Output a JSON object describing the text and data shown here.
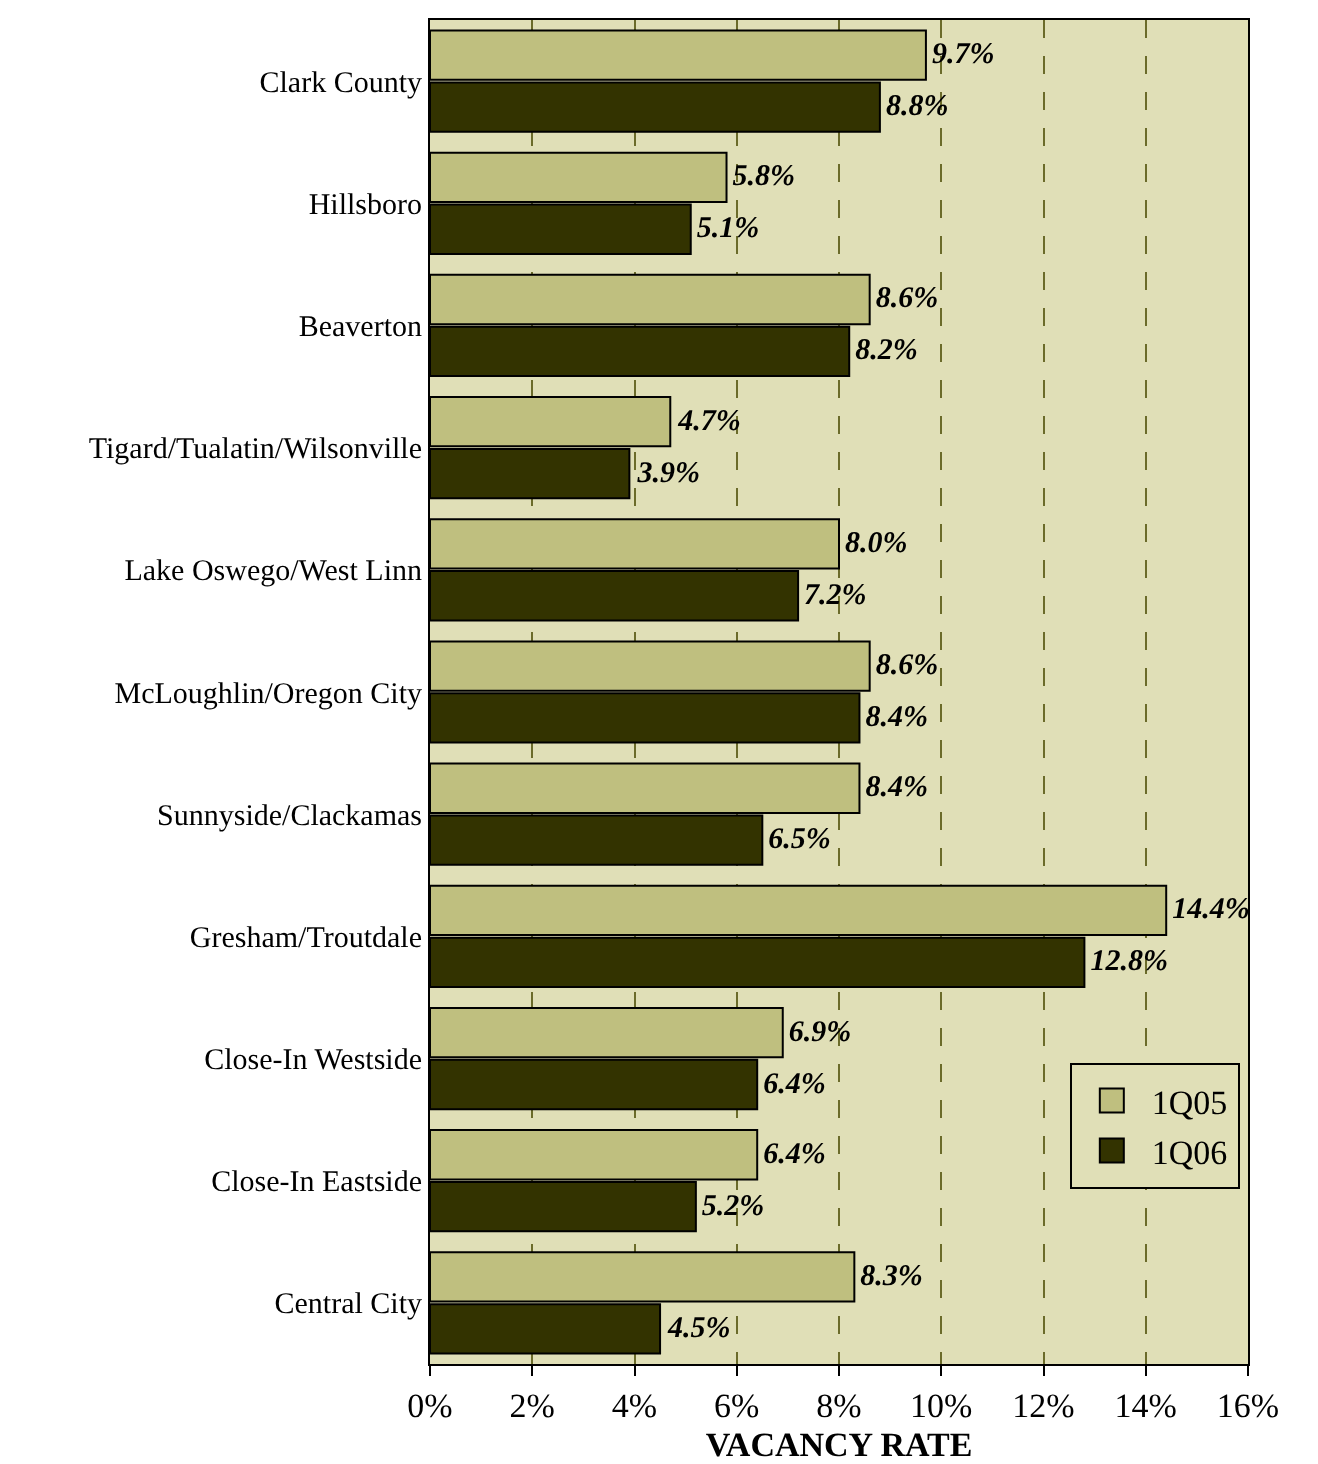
{
  "chart_data": {
    "type": "bar",
    "orientation": "horizontal",
    "xlabel": "VACANCY RATE",
    "categories": [
      "Clark County",
      "Hillsboro",
      "Beaverton",
      "Tigard/Tualatin/Wilsonville",
      "Lake Oswego/West Linn",
      "McLoughlin/Oregon City",
      "Sunnyside/Clackamas",
      "Gresham/Troutdale",
      "Close-In Westside",
      "Close-In Eastside",
      "Central City"
    ],
    "series": [
      {
        "name": "1Q05",
        "color": "#bfbf7f",
        "values": [
          9.7,
          5.8,
          8.6,
          4.7,
          8.0,
          8.6,
          8.4,
          14.4,
          6.9,
          6.4,
          8.3
        ],
        "value_labels": [
          "9.7%",
          "5.8%",
          "8.6%",
          "4.7%",
          "8.0%",
          "8.6%",
          "8.4%",
          "14.4%",
          "6.9%",
          "6.4%",
          "8.3%"
        ]
      },
      {
        "name": "1Q06",
        "color": "#333300",
        "values": [
          8.8,
          5.1,
          8.2,
          3.9,
          7.2,
          8.4,
          6.5,
          12.8,
          6.4,
          5.2,
          4.5
        ],
        "value_labels": [
          "8.8%",
          "5.1%",
          "8.2%",
          "3.9%",
          "7.2%",
          "8.4%",
          "6.5%",
          "12.8%",
          "6.4%",
          "5.2%",
          "4.5%"
        ]
      }
    ],
    "xlim": [
      0,
      16
    ],
    "xticks": [
      {
        "value": 0,
        "label": "0%"
      },
      {
        "value": 2,
        "label": "2%"
      },
      {
        "value": 4,
        "label": "4%"
      },
      {
        "value": 6,
        "label": "6%"
      },
      {
        "value": 8,
        "label": "8%"
      },
      {
        "value": 10,
        "label": "10%"
      },
      {
        "value": 12,
        "label": "12%"
      },
      {
        "value": 14,
        "label": "14%"
      },
      {
        "value": 16,
        "label": "16%"
      }
    ],
    "grid": "x",
    "legend": "bottom right"
  }
}
